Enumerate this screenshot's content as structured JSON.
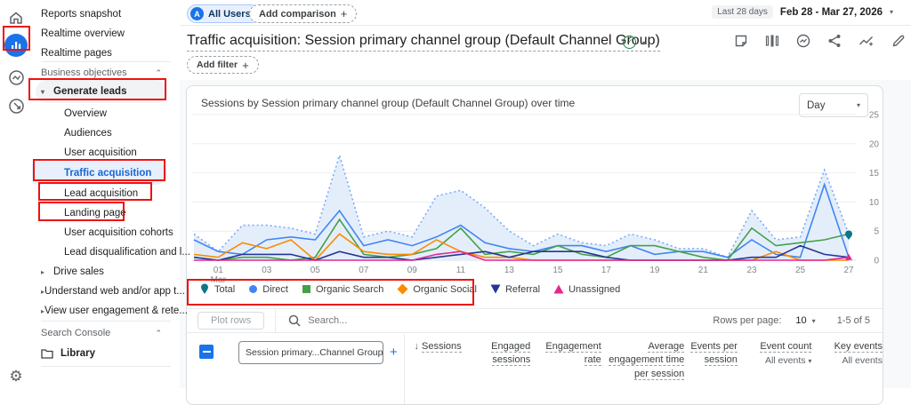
{
  "colors": {
    "annotation": "#ee1111",
    "accent_blue": "#1a73e8",
    "selected_link": "#1967d2",
    "area_fill": "#e4eefb"
  },
  "icons": {
    "rail": [
      "home-icon",
      "reports-icon",
      "explore-icon",
      "advertising-icon",
      "settings-gear-icon"
    ],
    "report_actions": [
      "note-icon",
      "comparisons-icon",
      "insights-icon",
      "share-icon",
      "trendline-icon",
      "edit-pencil-icon"
    ]
  },
  "sidebar": {
    "top_items": [
      "Reports snapshot",
      "Realtime overview",
      "Realtime pages"
    ],
    "business_objectives": {
      "header": "Business objectives",
      "generate_leads": {
        "label": "Generate leads",
        "children": [
          "Overview",
          "Audiences",
          "User acquisition",
          "Traffic acquisition",
          "Lead acquisition",
          "Landing page",
          "User acquisition cohorts",
          "Lead disqualification and l..."
        ],
        "selected_child": "Traffic acquisition"
      },
      "collapsed_groups": [
        "Drive sales",
        "Understand web and/or app t...",
        "View user engagement & rete..."
      ]
    },
    "search_console_header": "Search Console",
    "library_label": "Library"
  },
  "header": {
    "audience_pill": "All Users",
    "add_comparison": "Add comparison",
    "date_preset": "Last 28 days",
    "date_range": "Feb 28 - Mar 27, 2026",
    "title": "Traffic acquisition: Session primary channel group (Default Channel Group)",
    "add_filter": "Add filter"
  },
  "card": {
    "granularity": "Day"
  },
  "table": {
    "toolbar": {
      "plot_rows": "Plot rows",
      "search_placeholder": "Search..."
    },
    "pagination": {
      "rows_per_page_label": "Rows per page:",
      "rows_per_page_value": "10",
      "range": "1-5 of 5"
    },
    "dimension_dropdown": "Session primary...Channel Group)",
    "columns": [
      {
        "label": "Sessions",
        "sorted": "desc"
      },
      {
        "label": "Engaged sessions"
      },
      {
        "label": "Engagement rate"
      },
      {
        "label": "Average engagement time per session"
      },
      {
        "label": "Events per session"
      },
      {
        "label": "Event count",
        "sub": "All events"
      },
      {
        "label": "Key events",
        "sub": "All events"
      }
    ]
  },
  "chart_data": {
    "type": "line",
    "title": "Sessions by Session primary channel group (Default Channel Group) over time",
    "granularity": "Day",
    "grid": true,
    "legend_position": "bottom",
    "ylim": [
      0,
      25
    ],
    "yticks": [
      0,
      5,
      10,
      15,
      20,
      25
    ],
    "x": [
      "Feb 28",
      "Mar 1",
      "Mar 2",
      "Mar 3",
      "Mar 4",
      "Mar 5",
      "Mar 6",
      "Mar 7",
      "Mar 8",
      "Mar 9",
      "Mar 10",
      "Mar 11",
      "Mar 12",
      "Mar 13",
      "Mar 14",
      "Mar 15",
      "Mar 16",
      "Mar 17",
      "Mar 18",
      "Mar 19",
      "Mar 20",
      "Mar 21",
      "Mar 22",
      "Mar 23",
      "Mar 24",
      "Mar 25",
      "Mar 26",
      "Mar 27"
    ],
    "xticks": [
      {
        "i": 1,
        "label": "01",
        "sub": "Mar"
      },
      {
        "i": 3,
        "label": "03"
      },
      {
        "i": 5,
        "label": "05"
      },
      {
        "i": 7,
        "label": "07"
      },
      {
        "i": 9,
        "label": "09"
      },
      {
        "i": 11,
        "label": "11"
      },
      {
        "i": 13,
        "label": "13"
      },
      {
        "i": 15,
        "label": "15"
      },
      {
        "i": 17,
        "label": "17"
      },
      {
        "i": 19,
        "label": "19"
      },
      {
        "i": 21,
        "label": "21"
      },
      {
        "i": 23,
        "label": "23"
      },
      {
        "i": 25,
        "label": "25"
      },
      {
        "i": 27,
        "label": "27"
      }
    ],
    "series": [
      {
        "name": "Total",
        "marker": "pin",
        "marker_color": "#0e7688",
        "line_color": "#7baaf7",
        "dashed": true,
        "area": true,
        "values": [
          4.5,
          1.5,
          6,
          6,
          5.5,
          4.5,
          18,
          4,
          5,
          4,
          11,
          12,
          9,
          5,
          2.5,
          4.5,
          3,
          2.5,
          4.5,
          3.5,
          2,
          2,
          0.5,
          8.5,
          3.5,
          4,
          15.5,
          4.5
        ]
      },
      {
        "name": "Direct",
        "marker": "circle",
        "marker_color": "#4285f4",
        "line_color": "#4285f4",
        "values": [
          3.5,
          1.5,
          1,
          3.5,
          4,
          3.5,
          8.5,
          2.5,
          3.5,
          2.5,
          4,
          6,
          3,
          2,
          1.5,
          2.5,
          2.5,
          1.5,
          2.5,
          1,
          1.5,
          1.5,
          0.5,
          3.5,
          1,
          0.5,
          13,
          0.5
        ]
      },
      {
        "name": "Organic Search",
        "marker": "square",
        "marker_color": "#45a049",
        "line_color": "#45a049",
        "values": [
          0.5,
          0,
          0.5,
          0.5,
          0,
          0.5,
          7,
          1,
          0.5,
          1,
          2,
          5.5,
          1,
          1.5,
          1,
          2.5,
          1,
          0.5,
          2.5,
          2.5,
          1.5,
          0.5,
          0,
          5.5,
          2.5,
          3,
          3.5,
          4.5
        ]
      },
      {
        "name": "Organic Social",
        "marker": "diamond",
        "marker_color": "#fb8c00",
        "line_color": "#fb8c00",
        "values": [
          1,
          0.5,
          3,
          2,
          3.5,
          0,
          4.5,
          1.5,
          1,
          1,
          3.5,
          1.5,
          0.5,
          0.5,
          0,
          0,
          0,
          0,
          0,
          0,
          0,
          0,
          0,
          0,
          1.5,
          0,
          0,
          0
        ]
      },
      {
        "name": "Referral",
        "marker": "triangle-down",
        "marker_color": "#283593",
        "line_color": "#283593",
        "values": [
          0.5,
          0,
          1,
          1,
          1,
          0,
          1.5,
          0.5,
          0.5,
          0,
          0.5,
          1,
          1.5,
          0.5,
          1.5,
          1.5,
          1.5,
          0.5,
          0,
          0,
          0,
          0,
          0,
          0.5,
          0.5,
          2.5,
          1,
          0.5
        ]
      },
      {
        "name": "Unassigned",
        "marker": "triangle-up",
        "marker_color": "#e52592",
        "line_color": "#e52592",
        "values": [
          0,
          0,
          0,
          0,
          0,
          0,
          0,
          0,
          0,
          0,
          1,
          1.5,
          0,
          0,
          0,
          0,
          0,
          0,
          0,
          0,
          0,
          0,
          0,
          0,
          0,
          0,
          0,
          0.5
        ]
      }
    ]
  }
}
